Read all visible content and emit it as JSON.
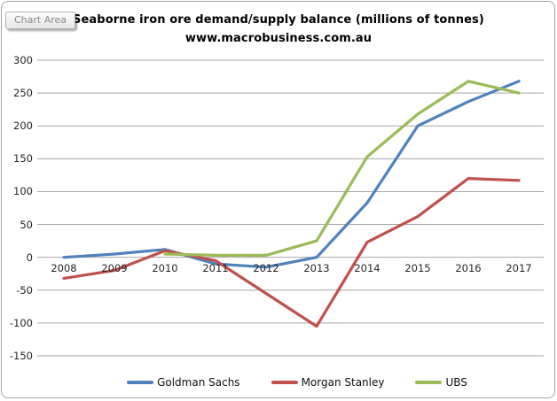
{
  "window": {
    "tooltip_label": "Chart Area"
  },
  "chart_data": {
    "type": "line",
    "title": "Seaborne iron ore demand/supply balance (millions of tonnes)",
    "subtitle": "www.macrobusiness.com.au",
    "categories": [
      "2008",
      "2009",
      "2010",
      "2011",
      "2012",
      "2013",
      "2014",
      "2015",
      "2016",
      "2017"
    ],
    "series": [
      {
        "name": "Goldman Sachs",
        "color": "#4F81BD",
        "values": [
          0,
          5,
          12,
          -10,
          -15,
          0,
          83,
          200,
          237,
          268
        ]
      },
      {
        "name": "Morgan Stanley",
        "color": "#C0504D",
        "values": [
          -32,
          -20,
          10,
          -5,
          -55,
          -105,
          23,
          62,
          120,
          117
        ]
      },
      {
        "name": "UBS",
        "color": "#9BBB59",
        "values": [
          null,
          null,
          5,
          3,
          3,
          25,
          153,
          218,
          268,
          250
        ]
      }
    ],
    "ylim": [
      -150,
      300
    ],
    "ytick_step": 50,
    "grid": true,
    "gridline_color": "#a6a6a6",
    "axis_text_color": "#262626",
    "legend_position": "bottom"
  }
}
